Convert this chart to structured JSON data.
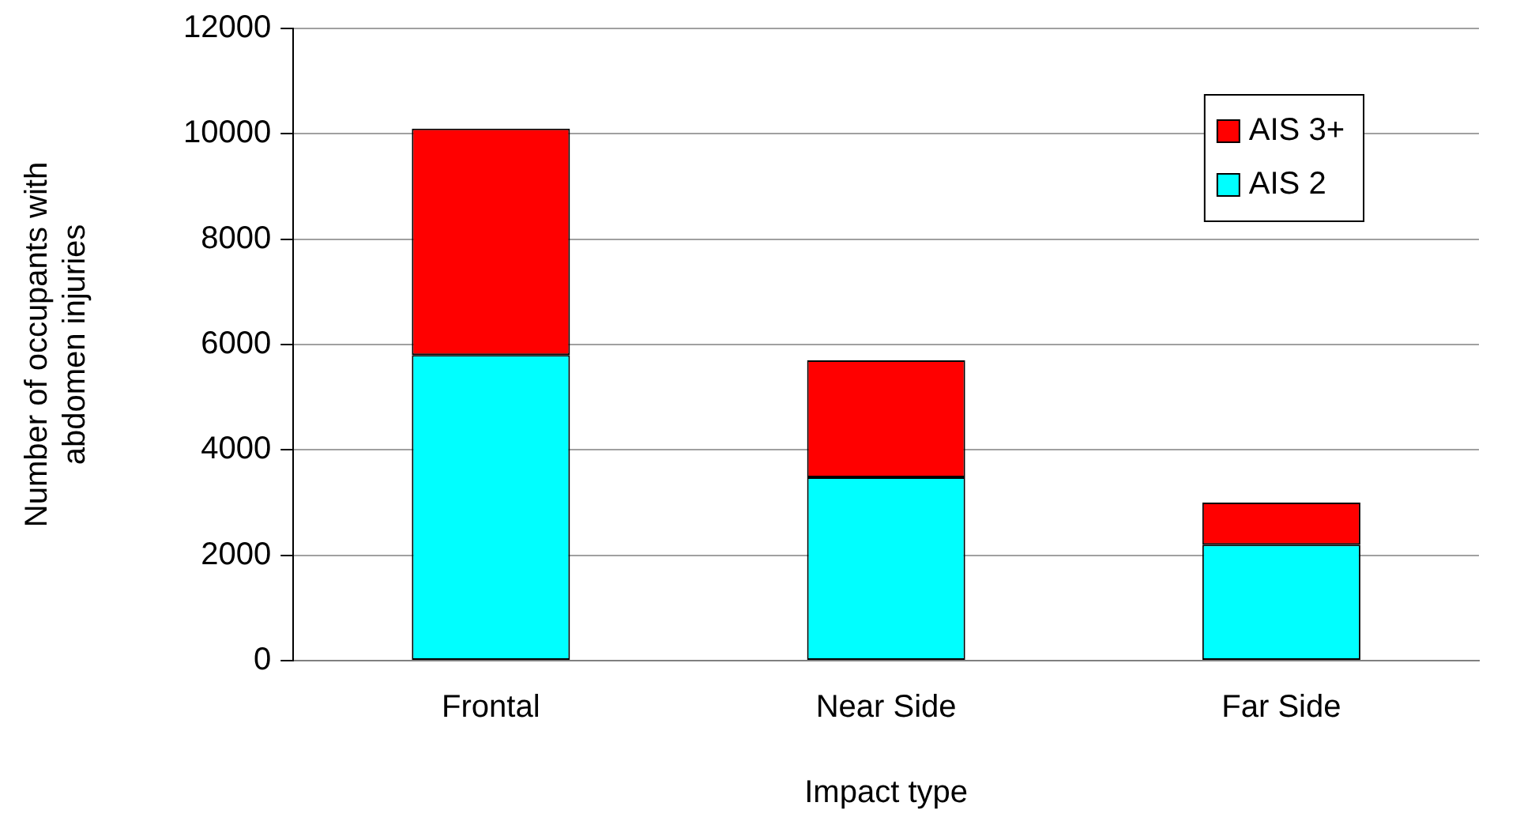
{
  "chart_data": {
    "type": "bar",
    "stacked": true,
    "xlabel": "Impact type",
    "ylabel": "Number of occupants with abdomen injuries",
    "categories": [
      "Frontal",
      "Near Side",
      "Far Side"
    ],
    "series": [
      {
        "name": "AIS 2",
        "color": "#00ffff",
        "values": [
          5800,
          3480,
          2200
        ]
      },
      {
        "name": "AIS 3+",
        "color": "#ff0000",
        "values": [
          4300,
          2220,
          800
        ]
      }
    ],
    "ylim": [
      0,
      12000
    ],
    "yticks": [
      0,
      2000,
      4000,
      6000,
      8000,
      10000,
      12000
    ],
    "grid": "y",
    "legend": "top right"
  }
}
